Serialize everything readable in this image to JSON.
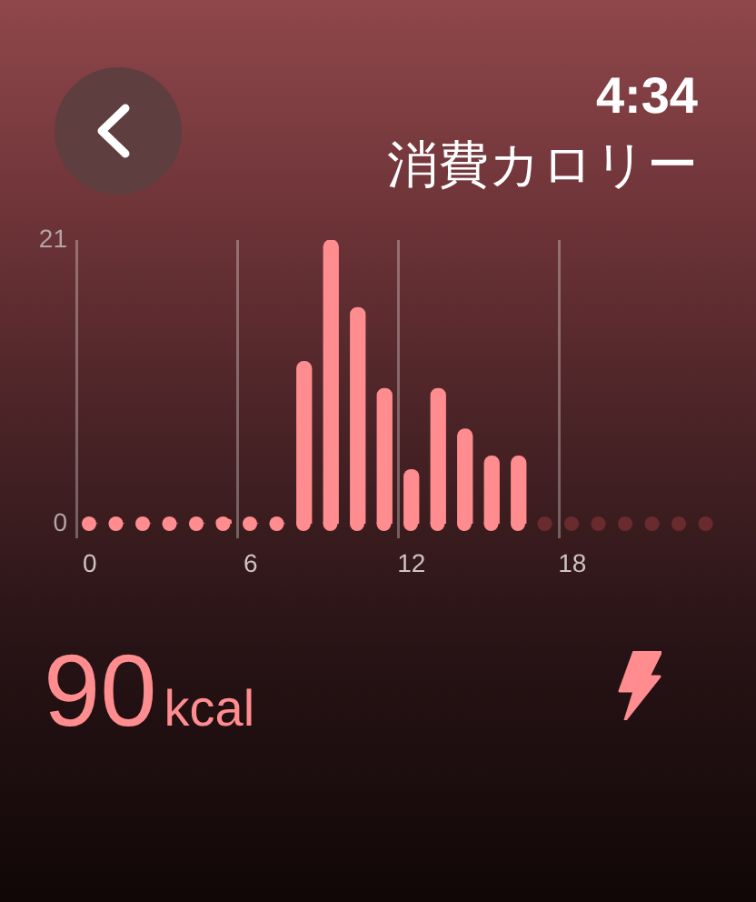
{
  "chart_data": {
    "type": "bar",
    "title": "消費カロリー",
    "annotations": [
      "4:34",
      "90",
      "kcal"
    ],
    "categories": [
      "0",
      null,
      null,
      null,
      null,
      null,
      "6",
      null,
      null,
      null,
      null,
      null,
      "12",
      null,
      null,
      null,
      null,
      null,
      "18",
      null,
      null,
      null,
      null,
      null
    ],
    "values": [
      0,
      0,
      0,
      0,
      0,
      0.3,
      0,
      0,
      12,
      21,
      16,
      10,
      4,
      10,
      7,
      5,
      5,
      0,
      0,
      0,
      0,
      0,
      0,
      0
    ],
    "colors": [
      "#ff8c8e",
      "#ff8c8e",
      "#ff8c8e",
      "#ff8c8e",
      "#ff8c8e",
      "#ff8c8e",
      "#ff8c8e",
      "#ff8c8e",
      "#ff8c8e",
      "#ff8c8e",
      "#ff8c8e",
      "#ff8c8e",
      "#ff8c8e",
      "#ff8c8e",
      "#ff8c8e",
      "#ff8c8e",
      "#ff8c8e",
      "#6a2b2f",
      "#6a2b2f",
      "#6a2b2f",
      "#6a2b2f",
      "#6a2b2f",
      "#6a2b2f",
      "#6a2b2f"
    ],
    "ylim": [
      0,
      21
    ],
    "yticks": [
      0,
      21
    ],
    "grid": "x"
  }
}
